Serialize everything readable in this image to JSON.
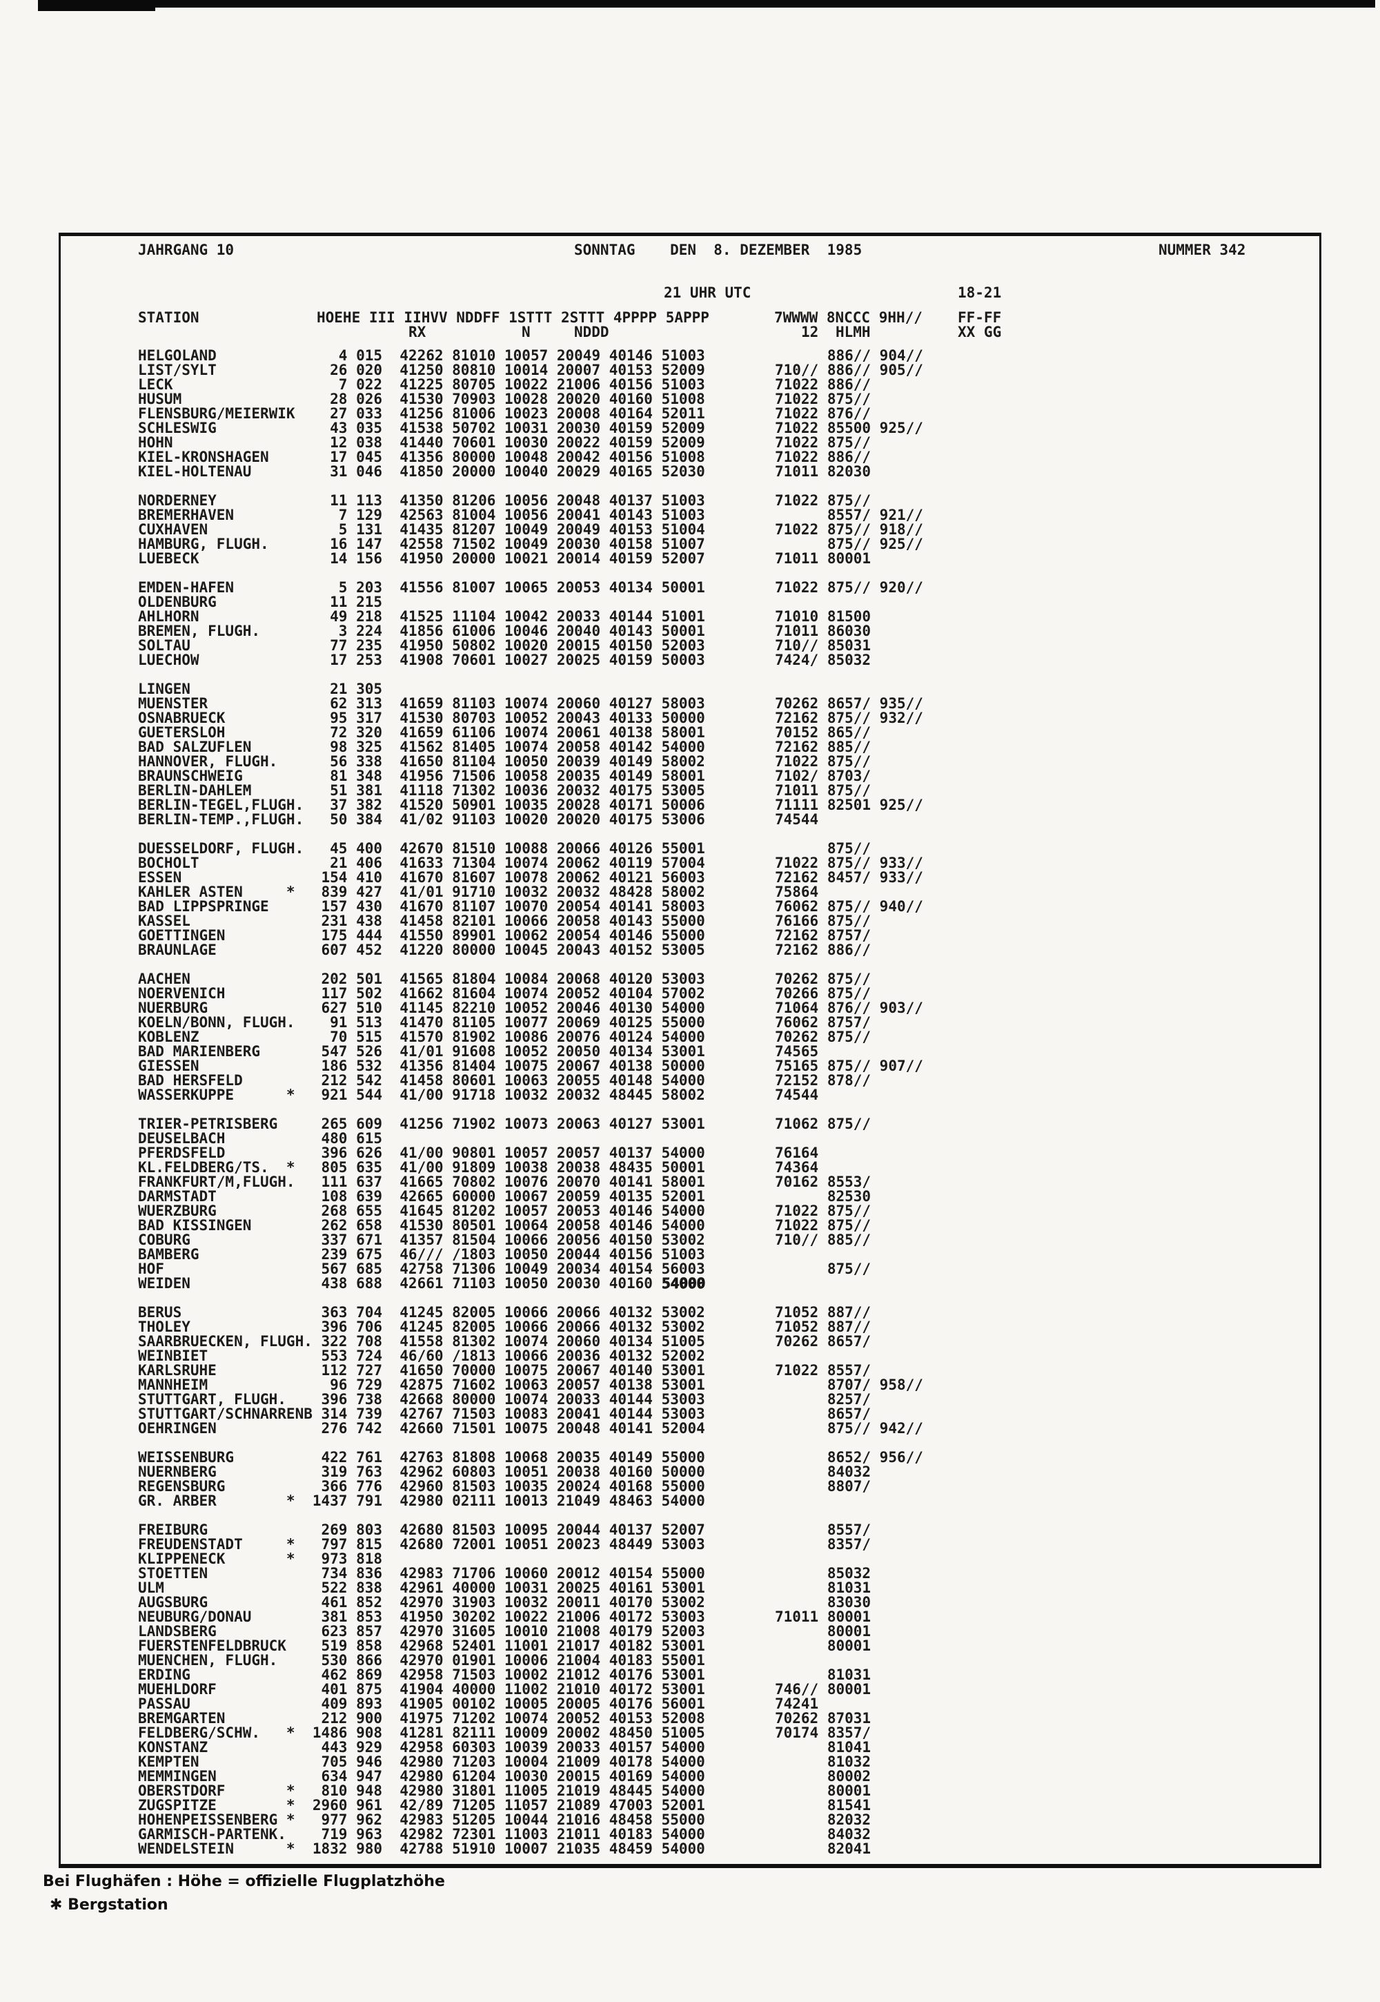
{
  "header": {
    "volume": "JAHRGANG 10",
    "date": "SONNTAG    DEN  8. DEZEMBER  1985",
    "number": "NUMMER 342",
    "utc_time": "21 UHR UTC",
    "time_range": "18-21"
  },
  "columns": {
    "station": "STATION",
    "groups_line1": "HOEHE III IIHVV NDDFF 1STTT 2STTT 4PPPP 5APPP",
    "right_line1": "7WWWW 8NCCC 9HH//",
    "ff": "FF-FF",
    "rx": "RX",
    "n": "N",
    "nddd": "NDDD",
    "twelve": "12",
    "hlmh": "HLMH",
    "xxgg": "XX GG"
  },
  "footer": {
    "line1": "Bei Flughäfen : Höhe = offizielle Flugplatzhöhe",
    "line2": "✱ Bergstation"
  },
  "blocks": [
    [
      {
        "n": "HELGOLAND",
        "h": "4",
        "i": "015",
        "m": "42262 81010 10057 20049 40146 51003",
        "r8": "886//",
        "r9": "904//"
      },
      {
        "n": "LIST/SYLT",
        "h": "26",
        "i": "020",
        "m": "41250 80810 10014 20007 40153 52009",
        "r7": "710//",
        "r8": "886//",
        "r9": "905//"
      },
      {
        "n": "LECK",
        "h": "7",
        "i": "022",
        "m": "41225 80705 10022 21006 40156 51003",
        "r7": "71022",
        "r8": "886//"
      },
      {
        "n": "HUSUM",
        "h": "28",
        "i": "026",
        "m": "41530 70903 10028 20020 40160 51008",
        "r7": "71022",
        "r8": "875//"
      },
      {
        "n": "FLENSBURG/MEIERWIK",
        "h": "27",
        "i": "033",
        "m": "41256 81006 10023 20008 40164 52011",
        "r7": "71022",
        "r8": "876//"
      },
      {
        "n": "SCHLESWIG",
        "h": "43",
        "i": "035",
        "m": "41538 50702 10031 20030 40159 52009",
        "r7": "71022",
        "r8": "85500",
        "r9": "925//"
      },
      {
        "n": "HOHN",
        "h": "12",
        "i": "038",
        "m": "41440 70601 10030 20022 40159 52009",
        "r7": "71022",
        "r8": "875//"
      },
      {
        "n": "KIEL-KRONSHAGEN",
        "h": "17",
        "i": "045",
        "m": "41356 80000 10048 20042 40156 51008",
        "r7": "71022",
        "r8": "886//"
      },
      {
        "n": "KIEL-HOLTENAU",
        "h": "31",
        "i": "046",
        "m": "41850 20000 10040 20029 40165 52030",
        "r7": "71011",
        "r8": "82030"
      }
    ],
    [
      {
        "n": "NORDERNEY",
        "h": "11",
        "i": "113",
        "m": "41350 81206 10056 20048 40137 51003",
        "r7": "71022",
        "r8": "875//"
      },
      {
        "n": "BREMERHAVEN",
        "h": "7",
        "i": "129",
        "m": "42563 81004 10056 20041 40143 51003",
        "r8": "8557/",
        "r9": "921//"
      },
      {
        "n": "CUXHAVEN",
        "h": "5",
        "i": "131",
        "m": "41435 81207 10049 20049 40153 51004",
        "r7": "71022",
        "r8": "875//",
        "r9": "918//"
      },
      {
        "n": "HAMBURG, FLUGH.",
        "h": "16",
        "i": "147",
        "m": "42558 71502 10049 20030 40158 51007",
        "r8": "875//",
        "r9": "925//"
      },
      {
        "n": "LUEBECK",
        "h": "14",
        "i": "156",
        "m": "41950 20000 10021 20014 40159 52007",
        "r7": "71011",
        "r8": "80001"
      }
    ],
    [
      {
        "n": "EMDEN-HAFEN",
        "h": "5",
        "i": "203",
        "m": "41556 81007 10065 20053 40134 50001",
        "r7": "71022",
        "r8": "875//",
        "r9": "920//"
      },
      {
        "n": "OLDENBURG",
        "h": "11",
        "i": "215"
      },
      {
        "n": "AHLHORN",
        "h": "49",
        "i": "218",
        "m": "41525 11104 10042 20033 40144 51001",
        "r7": "71010",
        "r8": "81500"
      },
      {
        "n": "BREMEN, FLUGH.",
        "h": "3",
        "i": "224",
        "m": "41856 61006 10046 20040 40143 50001",
        "r7": "71011",
        "r8": "86030"
      },
      {
        "n": "SOLTAU",
        "h": "77",
        "i": "235",
        "m": "41950 50802 10020 20015 40150 52003",
        "r7": "710//",
        "r8": "85031"
      },
      {
        "n": "LUECHOW",
        "h": "17",
        "i": "253",
        "m": "41908 70601 10027 20025 40159 50003",
        "r7": "7424/",
        "r8": "85032"
      }
    ],
    [
      {
        "n": "LINGEN",
        "h": "21",
        "i": "305"
      },
      {
        "n": "MUENSTER",
        "h": "62",
        "i": "313",
        "m": "41659 81103 10074 20060 40127 58003",
        "r7": "70262",
        "r8": "8657/",
        "r9": "935//"
      },
      {
        "n": "OSNABRUECK",
        "h": "95",
        "i": "317",
        "m": "41530 80703 10052 20043 40133 50000",
        "r7": "72162",
        "r8": "875//",
        "r9": "932//"
      },
      {
        "n": "GUETERSLOH",
        "h": "72",
        "i": "320",
        "m": "41659 61106 10074 20061 40138 58001",
        "r7": "70152",
        "r8": "865//"
      },
      {
        "n": "BAD SALZUFLEN",
        "h": "98",
        "i": "325",
        "m": "41562 81405 10074 20058 40142 54000",
        "r7": "72162",
        "r8": "885//"
      },
      {
        "n": "HANNOVER, FLUGH.",
        "h": "56",
        "i": "338",
        "m": "41650 81104 10050 20039 40149 58002",
        "r7": "71022",
        "r8": "875//"
      },
      {
        "n": "BRAUNSCHWEIG",
        "h": "81",
        "i": "348",
        "m": "41956 71506 10058 20035 40149 58001",
        "r7": "7102/",
        "r8": "8703/"
      },
      {
        "n": "BERLIN-DAHLEM",
        "h": "51",
        "i": "381",
        "m": "41118 71302 10036 20032 40175 53005",
        "r7": "71011",
        "r8": "875//"
      },
      {
        "n": "BERLIN-TEGEL,FLUGH.",
        "h": "37",
        "i": "382",
        "m": "41520 50901 10035 20028 40171 50006",
        "r7": "71111",
        "r8": "82501",
        "r9": "925//"
      },
      {
        "n": "BERLIN-TEMP.,FLUGH.",
        "h": "50",
        "i": "384",
        "m": "41/02 91103 10020 20020 40175 53006",
        "r7": "74544"
      }
    ],
    [
      {
        "n": "DUESSELDORF, FLUGH.",
        "h": "45",
        "i": "400",
        "m": "42670 81510 10088 20066 40126 55001",
        "r8": "875//"
      },
      {
        "n": "BOCHOLT",
        "h": "21",
        "i": "406",
        "m": "41633 71304 10074 20062 40119 57004",
        "r7": "71022",
        "r8": "875//",
        "r9": "933//"
      },
      {
        "n": "ESSEN",
        "h": "154",
        "i": "410",
        "m": "41670 81607 10078 20062 40121 56003",
        "r7": "72162",
        "r8": "8457/",
        "r9": "933//"
      },
      {
        "n": "KAHLER ASTEN",
        "s": 1,
        "h": "839",
        "i": "427",
        "m": "41/01 91710 10032 20032 48428 58002",
        "r7": "75864"
      },
      {
        "n": "BAD LIPPSPRINGE",
        "h": "157",
        "i": "430",
        "m": "41670 81107 10070 20054 40141 58003",
        "r7": "76062",
        "r8": "875//",
        "r9": "940//"
      },
      {
        "n": "KASSEL",
        "h": "231",
        "i": "438",
        "m": "41458 82101 10066 20058 40143 55000",
        "r7": "76166",
        "r8": "875//"
      },
      {
        "n": "GOETTINGEN",
        "h": "175",
        "i": "444",
        "m": "41550 89901 10062 20054 40146 55000",
        "r7": "72162",
        "r8": "8757/"
      },
      {
        "n": "BRAUNLAGE",
        "h": "607",
        "i": "452",
        "m": "41220 80000 10045 20043 40152 53005",
        "r7": "72162",
        "r8": "886//"
      }
    ],
    [
      {
        "n": "AACHEN",
        "h": "202",
        "i": "501",
        "m": "41565 81804 10084 20068 40120 53003",
        "r7": "70262",
        "r8": "875//"
      },
      {
        "n": "NOERVENICH",
        "h": "117",
        "i": "502",
        "m": "41662 81604 10074 20052 40104 57002",
        "r7": "70266",
        "r8": "875//"
      },
      {
        "n": "NUERBURG",
        "h": "627",
        "i": "510",
        "m": "41145 82210 10052 20046 40130 54000",
        "r7": "71064",
        "r8": "876//",
        "r9": "903//"
      },
      {
        "n": "KOELN/BONN, FLUGH.",
        "h": "91",
        "i": "513",
        "m": "41470 81105 10077 20069 40125 55000",
        "r7": "76062",
        "r8": "8757/"
      },
      {
        "n": "KOBLENZ",
        "h": "70",
        "i": "515",
        "m": "41570 81902 10086 20076 40124 54000",
        "r7": "70262",
        "r8": "875//"
      },
      {
        "n": "BAD MARIENBERG",
        "h": "547",
        "i": "526",
        "m": "41/01 91608 10052 20050 40134 53001",
        "r7": "74565"
      },
      {
        "n": "GIESSEN",
        "h": "186",
        "i": "532",
        "m": "41356 81404 10075 20067 40138 50000",
        "r7": "75165",
        "r8": "875//",
        "r9": "907//"
      },
      {
        "n": "BAD HERSFELD",
        "h": "212",
        "i": "542",
        "m": "41458 80601 10063 20055 40148 54000",
        "r7": "72152",
        "r8": "878//"
      },
      {
        "n": "WASSERKUPPE",
        "s": 1,
        "h": "921",
        "i": "544",
        "m": "41/00 91718 10032 20032 48445 58002",
        "r7": "74544"
      }
    ],
    [
      {
        "n": "TRIER-PETRISBERG",
        "h": "265",
        "i": "609",
        "m": "41256 71902 10073 20063 40127 53001",
        "r7": "71062",
        "r8": "875//"
      },
      {
        "n": "DEUSELBACH",
        "h": "480",
        "i": "615"
      },
      {
        "n": "PFERDSFELD",
        "h": "396",
        "i": "626",
        "m": "41/00 90801 10057 20057 40137 54000",
        "r7": "76164"
      },
      {
        "n": "KL.FELDBERG/TS.",
        "s": 1,
        "h": "805",
        "i": "635",
        "m": "41/00 91809 10038 20038 48435 50001",
        "r7": "74364"
      },
      {
        "n": "FRANKFURT/M,FLUGH.",
        "h": "111",
        "i": "637",
        "m": "41665 70802 10076 20070 40141 58001",
        "r7": "70162",
        "r8": "8553/"
      },
      {
        "n": "DARMSTADT",
        "h": "108",
        "i": "639",
        "m": "42665 60000 10067 20059 40135 52001",
        "r8": "82530"
      },
      {
        "n": "WUERZBURG",
        "h": "268",
        "i": "655",
        "m": "41645 81202 10057 20053 40146 54000",
        "r7": "71022",
        "r8": "875//"
      },
      {
        "n": "BAD KISSINGEN",
        "h": "262",
        "i": "658",
        "m": "41530 80501 10064 20058 40146 54000",
        "r7": "71022",
        "r8": "875//"
      },
      {
        "n": "COBURG",
        "h": "337",
        "i": "671",
        "m": "41357 81504 10066 20056 40150 53002",
        "r7": "710//",
        "r8": "885//"
      },
      {
        "n": "BAMBERG",
        "h": "239",
        "i": "675",
        "m": "46/// /1803 10050 20044 40156 51003"
      },
      {
        "n": "HOF",
        "h": "567",
        "i": "685",
        "m": "42758 71306 10049 20034 40154 56003",
        "r8": "875//"
      },
      {
        "n": "WEIDEN",
        "h": "438",
        "i": "688",
        "m": "42661 71103 10050 20030 40160 ",
        "mb": "54000"
      }
    ],
    [
      {
        "n": "BERUS",
        "h": "363",
        "i": "704",
        "m": "41245 82005 10066 20066 40132 53002",
        "r7": "71052",
        "r8": "887//"
      },
      {
        "n": "THOLEY",
        "h": "396",
        "i": "706",
        "m": "41245 82005 10066 20066 40132 53002",
        "r7": "71052",
        "r8": "887//"
      },
      {
        "n": "SAARBRUECKEN, FLUGH.",
        "h": "322",
        "i": "708",
        "m": "41558 81302 10074 20060 40134 51005",
        "r7": "70262",
        "r8": "8657/"
      },
      {
        "n": "WEINBIET",
        "h": "553",
        "i": "724",
        "m": "46/60 /1813 10066 20036 40132 52002"
      },
      {
        "n": "KARLSRUHE",
        "h": "112",
        "i": "727",
        "m": "41650 70000 10075 20067 40140 53001",
        "r7": "71022",
        "r8": "8557/"
      },
      {
        "n": "MANNHEIM",
        "h": "96",
        "i": "729",
        "m": "42875 71602 10063 20057 40138 53001",
        "r8": "8707/",
        "r9": "958//"
      },
      {
        "n": "STUTTGART, FLUGH.",
        "h": "396",
        "i": "738",
        "m": "42668 80000 10074 20033 40144 53003",
        "r8": "8257/"
      },
      {
        "n": "STUTTGART/SCHNARRENB",
        "h": "314",
        "i": "739",
        "m": "42767 71503 10083 20041 40144 53003",
        "r8": "8657/"
      },
      {
        "n": "OEHRINGEN",
        "h": "276",
        "i": "742",
        "m": "42660 71501 10075 20048 40141 52004",
        "r8": "875//",
        "r9": "942//"
      }
    ],
    [
      {
        "n": "WEISSENBURG",
        "h": "422",
        "i": "761",
        "m": "42763 81808 10068 20035 40149 55000",
        "r8": "8652/",
        "r9": "956//"
      },
      {
        "n": "NUERNBERG",
        "h": "319",
        "i": "763",
        "m": "42962 60803 10051 20038 40160 50000",
        "r8": "84032"
      },
      {
        "n": "REGENSBURG",
        "h": "366",
        "i": "776",
        "m": "42960 81503 10035 20024 40168 55000",
        "r8": "8807/"
      },
      {
        "n": "GR. ARBER",
        "s": 1,
        "h": "1437",
        "i": "791",
        "m": "42980 02111 10013 21049 48463 54000"
      }
    ],
    [
      {
        "n": "FREIBURG",
        "h": "269",
        "i": "803",
        "m": "42680 81503 10095 20044 40137 52007",
        "r8": "8557/"
      },
      {
        "n": "FREUDENSTADT",
        "s": 1,
        "h": "797",
        "i": "815",
        "m": "42680 72001 10051 20023 48449 53003",
        "r8": "8357/"
      },
      {
        "n": "KLIPPENECK",
        "s": 1,
        "h": "973",
        "i": "818"
      },
      {
        "n": "STOETTEN",
        "h": "734",
        "i": "836",
        "m": "42983 71706 10060 20012 40154 55000",
        "r8": "85032"
      },
      {
        "n": "ULM",
        "h": "522",
        "i": "838",
        "m": "42961 40000 10031 20025 40161 53001",
        "r8": "81031"
      },
      {
        "n": "AUGSBURG",
        "h": "461",
        "i": "852",
        "m": "42970 31903 10032 20011 40170 53002",
        "r8": "83030"
      },
      {
        "n": "NEUBURG/DONAU",
        "h": "381",
        "i": "853",
        "m": "41950 30202 10022 21006 40172 53003",
        "r7": "71011",
        "r8": "80001"
      },
      {
        "n": "LANDSBERG",
        "h": "623",
        "i": "857",
        "m": "42970 31605 10010 21008 40179 52003",
        "r8": "80001"
      },
      {
        "n": "FUERSTENFELDBRUCK",
        "h": "519",
        "i": "858",
        "m": "42968 52401 11001 21017 40182 53001",
        "r8": "80001"
      },
      {
        "n": "MUENCHEN, FLUGH.",
        "h": "530",
        "i": "866",
        "m": "42970 01901 10006 21004 40183 55001"
      },
      {
        "n": "ERDING",
        "h": "462",
        "i": "869",
        "m": "42958 71503 10002 21012 40176 53001",
        "r8": "81031"
      },
      {
        "n": "MUEHLDORF",
        "h": "401",
        "i": "875",
        "m": "41904 40000 11002 21010 40172 53001",
        "r7": "746//",
        "r8": "80001"
      },
      {
        "n": "PASSAU",
        "h": "409",
        "i": "893",
        "m": "41905 00102 10005 20005 40176 56001",
        "r7": "74241"
      },
      {
        "n": "BREMGARTEN",
        "h": "212",
        "i": "900",
        "m": "41975 71202 10074 20052 40153 52008",
        "r7": "70262",
        "r8": "87031"
      },
      {
        "n": "FELDBERG/SCHW.",
        "s": 1,
        "h": "1486",
        "i": "908",
        "m": "41281 82111 10009 20002 48450 51005",
        "r7": "70174",
        "r8": "8357/"
      },
      {
        "n": "KONSTANZ",
        "h": "443",
        "i": "929",
        "m": "42958 60303 10039 20033 40157 54000",
        "r8": "81041"
      },
      {
        "n": "KEMPTEN",
        "h": "705",
        "i": "946",
        "m": "42980 71203 10004 21009 40178 54000",
        "r8": "81032"
      },
      {
        "n": "MEMMINGEN",
        "h": "634",
        "i": "947",
        "m": "42980 61204 10030 20015 40169 54000",
        "r8": "80002"
      },
      {
        "n": "OBERSTDORF",
        "s": 1,
        "h": "810",
        "i": "948",
        "m": "42980 31801 11005 21019 48445 54000",
        "r8": "80001"
      },
      {
        "n": "ZUGSPITZE",
        "s": 1,
        "h": "2960",
        "i": "961",
        "m": "42/89 71205 11057 21089 47003 52001",
        "r8": "81541"
      },
      {
        "n": "HOHENPEISSENBERG",
        "s": 1,
        "h": "977",
        "i": "962",
        "m": "42983 51205 10044 21016 48458 55000",
        "r8": "82032"
      },
      {
        "n": "GARMISCH-PARTENK.",
        "h": "719",
        "i": "963",
        "m": "42982 72301 11003 21011 40183 54000",
        "r8": "84032"
      },
      {
        "n": "WENDELSTEIN",
        "s": 1,
        "h": "1832",
        "i": "980",
        "m": "42788 51910 10007 21035 48459 54000",
        "r8": "82041"
      }
    ]
  ]
}
